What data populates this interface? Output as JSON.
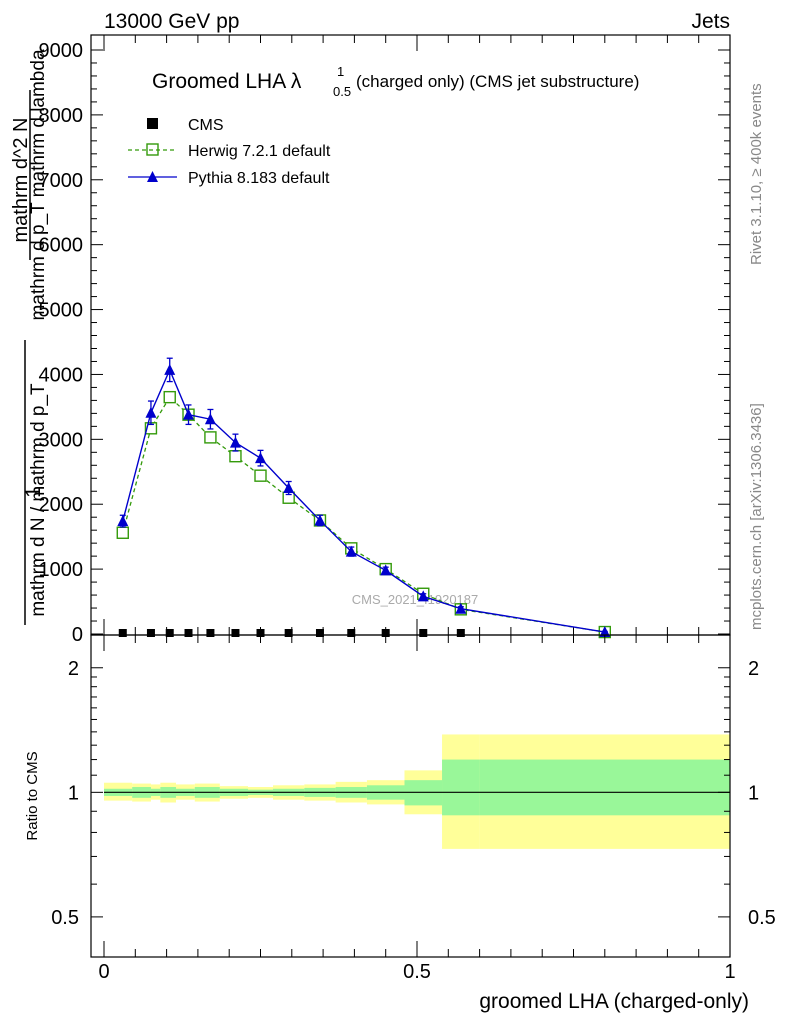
{
  "header": {
    "process": "13000 GeV pp",
    "category": "Jets"
  },
  "side_labels": {
    "rivet": "Rivet 3.1.10, ≥ 400k events",
    "mcplots": "mcplots.cern.ch [arXiv:1306.3436]"
  },
  "colors": {
    "cms": "#000000",
    "herwig": "#339a0a",
    "pythia": "#0000cc",
    "band_inner": "#99f799",
    "band_outer": "#ffff99"
  },
  "chart_data": [
    {
      "type": "line",
      "title_main": "Groomed LHA λ",
      "title_sup": "1",
      "title_sub": "0.5",
      "title_rest": "(charged only) (CMS jet substructure)",
      "watermark": "CMS_2021_I1920187",
      "ylabel_lines": [
        "1",
        "mathrm d N / mathrm d p_T",
        "mathrm d^2 N",
        "mathrm d p_T mathrm d lambda"
      ],
      "ylim": [
        0,
        9000
      ],
      "yticks": [
        0,
        1000,
        2000,
        3000,
        4000,
        5000,
        6000,
        7000,
        8000,
        9000
      ],
      "ytick_labels": [
        "0",
        "1000",
        "2000",
        "3000",
        "4000",
        "5000",
        "6000",
        "7000",
        "8000",
        "9000"
      ],
      "xlim": [
        0,
        1
      ],
      "legend": [
        "CMS",
        "Herwig 7.2.1 default",
        "Pythia 8.183 default"
      ],
      "series": [
        {
          "name": "CMS",
          "x": [
            0.03,
            0.075,
            0.105,
            0.135,
            0.17,
            0.21,
            0.25,
            0.295,
            0.345,
            0.395,
            0.45,
            0.51,
            0.57
          ],
          "y": [
            0,
            0,
            0,
            0,
            0,
            0,
            0,
            0,
            0,
            0,
            0,
            0,
            0
          ]
        },
        {
          "name": "Herwig 7.2.1 default",
          "x": [
            0.03,
            0.075,
            0.105,
            0.135,
            0.17,
            0.21,
            0.25,
            0.295,
            0.345,
            0.395,
            0.45,
            0.51,
            0.57,
            0.8
          ],
          "y": [
            1560,
            3170,
            3650,
            3380,
            3030,
            2740,
            2440,
            2100,
            1750,
            1320,
            1000,
            620,
            380,
            30
          ]
        },
        {
          "name": "Pythia 8.183 default",
          "x": [
            0.03,
            0.075,
            0.105,
            0.135,
            0.17,
            0.21,
            0.25,
            0.295,
            0.345,
            0.395,
            0.45,
            0.51,
            0.57,
            0.8
          ],
          "y": [
            1740,
            3410,
            4070,
            3380,
            3310,
            2950,
            2710,
            2250,
            1750,
            1270,
            980,
            580,
            390,
            30
          ],
          "err": [
            90,
            180,
            180,
            150,
            150,
            130,
            120,
            100,
            80,
            70,
            50,
            40,
            30,
            10
          ]
        }
      ]
    },
    {
      "type": "area",
      "ylabel": "Ratio to CMS",
      "xlabel": "groomed LHA (charged-only)",
      "ylim": [
        0.4,
        2.4
      ],
      "yscale": "log",
      "yticks": [
        0.5,
        1,
        2
      ],
      "ytick_labels": [
        "0.5",
        "1",
        "2"
      ],
      "xlim": [
        0,
        1
      ],
      "xticks": [
        0,
        0.5,
        1
      ],
      "xtick_labels": [
        "0",
        "0.5",
        "1"
      ],
      "bands": {
        "edges": [
          0,
          0.045,
          0.075,
          0.09,
          0.115,
          0.145,
          0.185,
          0.23,
          0.27,
          0.32,
          0.37,
          0.42,
          0.48,
          0.54,
          0.6,
          1.0
        ],
        "inner_lo": [
          0.98,
          0.97,
          0.98,
          0.97,
          0.98,
          0.97,
          0.98,
          0.985,
          0.98,
          0.975,
          0.97,
          0.96,
          0.93,
          0.88,
          0.88
        ],
        "inner_hi": [
          1.02,
          1.03,
          1.02,
          1.03,
          1.02,
          1.03,
          1.02,
          1.015,
          1.02,
          1.025,
          1.03,
          1.04,
          1.07,
          1.2,
          1.2
        ],
        "outer_lo": [
          0.955,
          0.95,
          0.96,
          0.945,
          0.96,
          0.95,
          0.965,
          0.97,
          0.96,
          0.955,
          0.945,
          0.935,
          0.885,
          0.73,
          0.73
        ],
        "outer_hi": [
          1.055,
          1.05,
          1.045,
          1.055,
          1.045,
          1.05,
          1.035,
          1.03,
          1.04,
          1.045,
          1.06,
          1.07,
          1.13,
          1.38,
          1.38
        ]
      },
      "reference": 1
    }
  ]
}
